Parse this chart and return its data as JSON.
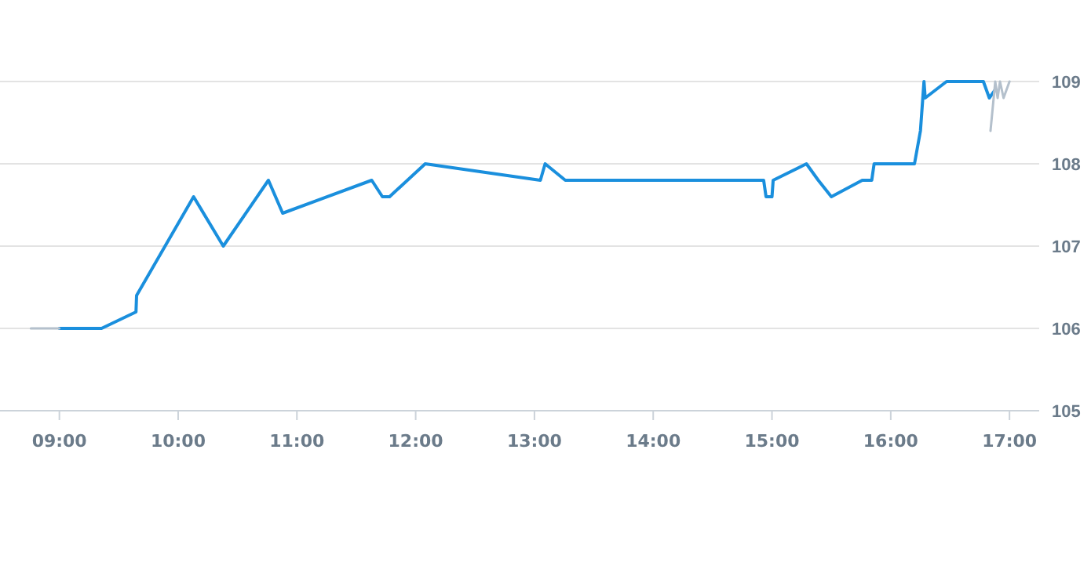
{
  "chart_data": {
    "type": "line",
    "x": [
      9,
      9.355,
      9.645,
      9.65,
      10.13,
      10.38,
      10.76,
      10.88,
      11.63,
      11.72,
      11.78,
      12.08,
      13.05,
      13.09,
      13.26,
      14.93,
      14.95,
      15.0,
      15.01,
      15.29,
      15.39,
      15.5,
      15.76,
      15.84,
      15.86,
      16.2,
      16.25,
      16.28,
      16.29,
      16.47,
      16.78,
      16.83,
      16.88
    ],
    "xlim": [
      8.5,
      17.25
    ],
    "ylim": [
      105,
      109
    ],
    "xticks": [
      {
        "value": 9,
        "label": "09:00"
      },
      {
        "value": 10,
        "label": "10:00"
      },
      {
        "value": 11,
        "label": "11:00"
      },
      {
        "value": 12,
        "label": "12:00"
      },
      {
        "value": 13,
        "label": "13:00"
      },
      {
        "value": 14,
        "label": "14:00"
      },
      {
        "value": 15,
        "label": "15:00"
      },
      {
        "value": 16,
        "label": "16:00"
      },
      {
        "value": 17,
        "label": "17:00"
      }
    ],
    "yticks": [
      105,
      106,
      107,
      108,
      109
    ],
    "grid": "y",
    "marker": "none",
    "line_style": "solid",
    "series": [
      {
        "color": "#1a8fdd",
        "values": [
          106,
          106,
          106.2,
          106.4,
          107.6,
          107.0,
          107.8,
          107.4,
          107.8,
          107.6,
          107.6,
          108.0,
          107.8,
          108.0,
          107.8,
          107.8,
          107.6,
          107.6,
          107.8,
          108.0,
          107.8,
          107.6,
          107.8,
          107.8,
          108.0,
          108.0,
          108.4,
          109.0,
          108.8,
          109.0,
          109.0,
          108.8,
          108.9
        ]
      },
      {
        "color": "#b4c0cc",
        "x": [
          8.76,
          9.0,
          null,
          16.84,
          16.88,
          16.9,
          16.92,
          16.95,
          17.0
        ],
        "values": [
          106,
          106,
          null,
          108.4,
          109.0,
          108.8,
          109.0,
          108.8,
          109.0
        ]
      }
    ]
  }
}
